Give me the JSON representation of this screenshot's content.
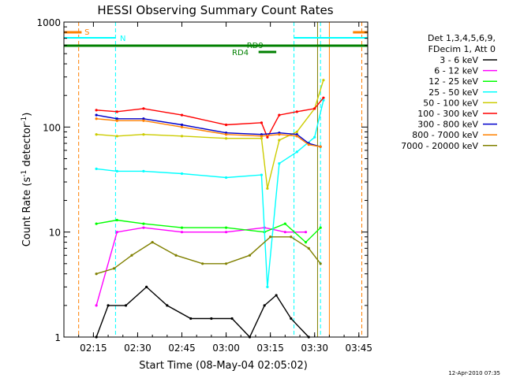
{
  "chart_data": {
    "type": "line",
    "title": "HESSI Observing Summary Count Rates",
    "xlabel": "Start Time (08-May-04 02:05:02)",
    "ylabel_main": "Count Rate (s",
    "ylabel_sup1": "-1",
    "ylabel_mid": " detector",
    "ylabel_sup2": "-1",
    "ylabel_end": ")",
    "y_scale": "log",
    "ylim": [
      1,
      1000
    ],
    "xlim_minutes_after_0205": [
      0,
      103
    ],
    "x_ticks": [
      "02:15",
      "02:30",
      "02:45",
      "03:00",
      "03:15",
      "03:30",
      "03:45"
    ],
    "y_ticks": [
      "1",
      "10",
      "100",
      "1000"
    ],
    "grid": false,
    "legend_placement": "right",
    "legend_header": [
      "Det 1,3,4,5,6,9,",
      "FDecim 1, Att 0"
    ],
    "series": [
      {
        "name": "3 - 6 keV",
        "color": "#000000",
        "x": [
          "02:16",
          "02:20",
          "02:26",
          "02:33",
          "02:40",
          "02:48",
          "02:55",
          "03:02",
          "03:08",
          "03:13",
          "03:17",
          "03:22",
          "03:28"
        ],
        "values": [
          1,
          2,
          2,
          3,
          2,
          1.5,
          1.5,
          1.5,
          1,
          2,
          2.5,
          1.5,
          1
        ]
      },
      {
        "name": "6 - 12 keV",
        "color": "#ff00ff",
        "x": [
          "02:16",
          "02:23",
          "02:32",
          "02:45",
          "03:00",
          "03:13",
          "03:20",
          "03:27"
        ],
        "values": [
          2,
          10,
          11,
          10,
          10,
          11,
          10,
          10
        ]
      },
      {
        "name": "12 - 25 keV",
        "color": "#00ff00",
        "x": [
          "02:16",
          "02:23",
          "02:32",
          "02:45",
          "03:00",
          "03:13",
          "03:20",
          "03:27",
          "03:32"
        ],
        "values": [
          12,
          13,
          12,
          11,
          11,
          10,
          12,
          8,
          11
        ]
      },
      {
        "name": "25 - 50 keV",
        "color": "#00ffff",
        "x": [
          "02:16",
          "02:23",
          "02:32",
          "02:45",
          "03:00",
          "03:12",
          "03:14",
          "03:18",
          "03:24",
          "03:30",
          "03:33"
        ],
        "values": [
          40,
          38,
          38,
          36,
          33,
          35,
          3,
          45,
          58,
          80,
          180
        ]
      },
      {
        "name": "50 - 100 keV",
        "color": "#cccc00",
        "x": [
          "02:16",
          "02:23",
          "02:32",
          "02:45",
          "03:00",
          "03:12",
          "03:14",
          "03:18",
          "03:24",
          "03:30",
          "03:33"
        ],
        "values": [
          85,
          82,
          85,
          82,
          78,
          78,
          26,
          75,
          90,
          150,
          280
        ]
      },
      {
        "name": "100 - 300 keV",
        "color": "#ff0000",
        "x": [
          "02:16",
          "02:23",
          "02:32",
          "02:45",
          "03:00",
          "03:12",
          "03:14",
          "03:18",
          "03:24",
          "03:30",
          "03:33"
        ],
        "values": [
          145,
          140,
          150,
          130,
          105,
          110,
          80,
          130,
          140,
          150,
          190
        ]
      },
      {
        "name": "300 - 800 keV",
        "color": "#0000cc",
        "x": [
          "02:16",
          "02:23",
          "02:32",
          "02:45",
          "03:00",
          "03:12",
          "03:18",
          "03:24",
          "03:28",
          "03:32"
        ],
        "values": [
          130,
          120,
          120,
          105,
          88,
          85,
          88,
          85,
          70,
          65
        ]
      },
      {
        "name": "800 - 7000 keV",
        "color": "#ff8000",
        "x": [
          "02:16",
          "02:23",
          "02:32",
          "02:45",
          "03:00",
          "03:12",
          "03:18",
          "03:24",
          "03:28",
          "03:32"
        ],
        "values": [
          120,
          115,
          115,
          100,
          85,
          82,
          85,
          82,
          68,
          65
        ]
      },
      {
        "name": "7000 - 20000 keV",
        "color": "#808000",
        "x": [
          "02:16",
          "02:22",
          "02:28",
          "02:35",
          "02:43",
          "02:52",
          "03:00",
          "03:08",
          "03:15",
          "03:22",
          "03:28",
          "03:32"
        ],
        "values": [
          4,
          4.5,
          6,
          8,
          6,
          5,
          5,
          6,
          9,
          9,
          7,
          5
        ]
      }
    ],
    "annotations": [
      {
        "text": "S",
        "color": "#ff8000"
      },
      {
        "text": "N",
        "color": "#00ffff"
      },
      {
        "text": "RD9",
        "color": "#008000"
      },
      {
        "text": "RD4",
        "color": "#008000"
      }
    ],
    "footer_date": "12-Apr-2010 07:35"
  }
}
